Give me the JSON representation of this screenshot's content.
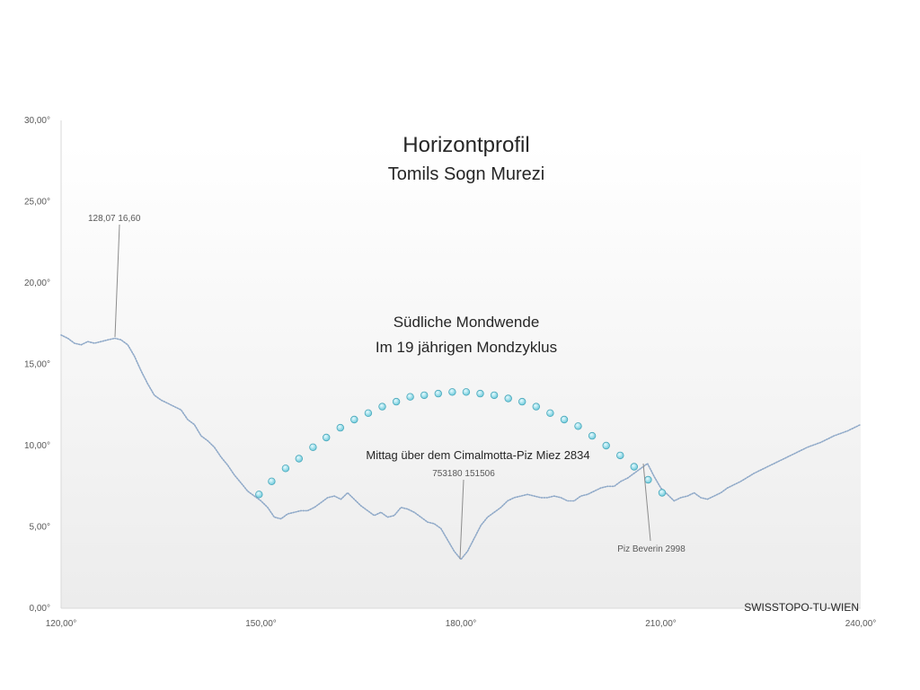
{
  "chart_data": {
    "type": "line",
    "title": "Horizontprofil",
    "subtitle": "Tomils Sogn Murezi",
    "xlim": [
      120,
      240
    ],
    "ylim": [
      0,
      30
    ],
    "x_ticks": [
      "120,00°",
      "150,00°",
      "180,00°",
      "210,00°",
      "240,00°"
    ],
    "y_ticks": [
      "0,00°",
      "5,00°",
      "10,00°",
      "15,00°",
      "20,00°",
      "25,00°",
      "30,00°"
    ],
    "grid": false,
    "series": [
      {
        "color": "#8fa9c8",
        "style": "dotted-line",
        "x": [
          120,
          121,
          122,
          123,
          124,
          125,
          126,
          127,
          128.07,
          129,
          130,
          131,
          132,
          133,
          134,
          135,
          136,
          137,
          138,
          139,
          140,
          141,
          142,
          143,
          144,
          145,
          146,
          147,
          148,
          149,
          150,
          151,
          152,
          153,
          154,
          155,
          156,
          157,
          158,
          159,
          160,
          161,
          162,
          163,
          164,
          165,
          166,
          167,
          168,
          169,
          170,
          171,
          172,
          173,
          174,
          175,
          176,
          177,
          178,
          179,
          180,
          181,
          182,
          183,
          184,
          185,
          186,
          187,
          188,
          189,
          190,
          191,
          192,
          193,
          194,
          195,
          196,
          197,
          198,
          199,
          200,
          201,
          202,
          203,
          204,
          205,
          206,
          207,
          208,
          209,
          210,
          211,
          212,
          213,
          214,
          215,
          216,
          217,
          218,
          219,
          220,
          222,
          224,
          226,
          228,
          230,
          232,
          234,
          236,
          238,
          240
        ],
        "y": [
          16.8,
          16.6,
          16.3,
          16.2,
          16.4,
          16.3,
          16.4,
          16.5,
          16.6,
          16.5,
          16.2,
          15.5,
          14.6,
          13.8,
          13.1,
          12.8,
          12.6,
          12.4,
          12.2,
          11.6,
          11.3,
          10.6,
          10.3,
          9.9,
          9.3,
          8.8,
          8.2,
          7.7,
          7.2,
          6.9,
          6.6,
          6.2,
          5.6,
          5.5,
          5.8,
          5.9,
          6.0,
          6.0,
          6.2,
          6.5,
          6.8,
          6.9,
          6.7,
          7.1,
          6.7,
          6.3,
          6.0,
          5.7,
          5.9,
          5.6,
          5.7,
          6.2,
          6.1,
          5.9,
          5.6,
          5.3,
          5.2,
          4.9,
          4.2,
          3.5,
          3.0,
          3.5,
          4.3,
          5.1,
          5.6,
          5.9,
          6.2,
          6.6,
          6.8,
          6.9,
          7.0,
          6.9,
          6.8,
          6.8,
          6.9,
          6.8,
          6.6,
          6.6,
          6.9,
          7.0,
          7.2,
          7.4,
          7.5,
          7.5,
          7.8,
          8.0,
          8.3,
          8.6,
          8.9,
          8.1,
          7.4,
          7.0,
          6.6,
          6.8,
          6.9,
          7.1,
          6.8,
          6.7,
          6.9,
          7.1,
          7.4,
          7.8,
          8.3,
          8.7,
          9.1,
          9.5,
          9.9,
          10.2,
          10.6,
          10.9,
          11.3
        ]
      },
      {
        "color": "#7fd3e0",
        "style": "markers",
        "x": [
          149.7,
          151.6,
          153.7,
          155.7,
          157.8,
          159.8,
          161.9,
          164.0,
          166.1,
          168.2,
          170.3,
          172.4,
          174.5,
          176.6,
          178.7,
          180.8,
          182.9,
          185.0,
          187.1,
          189.2,
          191.3,
          193.4,
          195.5,
          197.6,
          199.7,
          201.8,
          203.9,
          206.0,
          208.1,
          210.2
        ],
        "y": [
          7.0,
          7.8,
          8.6,
          9.2,
          9.9,
          10.5,
          11.1,
          11.6,
          12.0,
          12.4,
          12.7,
          13.0,
          13.1,
          13.2,
          13.3,
          13.3,
          13.2,
          13.1,
          12.9,
          12.7,
          12.4,
          12.0,
          11.6,
          11.2,
          10.6,
          10.0,
          9.4,
          8.7,
          7.9,
          7.1
        ]
      }
    ],
    "annotations": {
      "peak_left": "128,07 16,60",
      "moon_heading": "Südliche Mondwende",
      "moon_sub": "Im 19 jährigen Mondzyklus",
      "noon": "Mittag über dem Cimalmotta-Piz Miez 2834",
      "coords": "753180 151506",
      "piz_beverin": "Piz Beverin 2998",
      "credit": "SWISSTOPO-TU-WIEN"
    }
  }
}
